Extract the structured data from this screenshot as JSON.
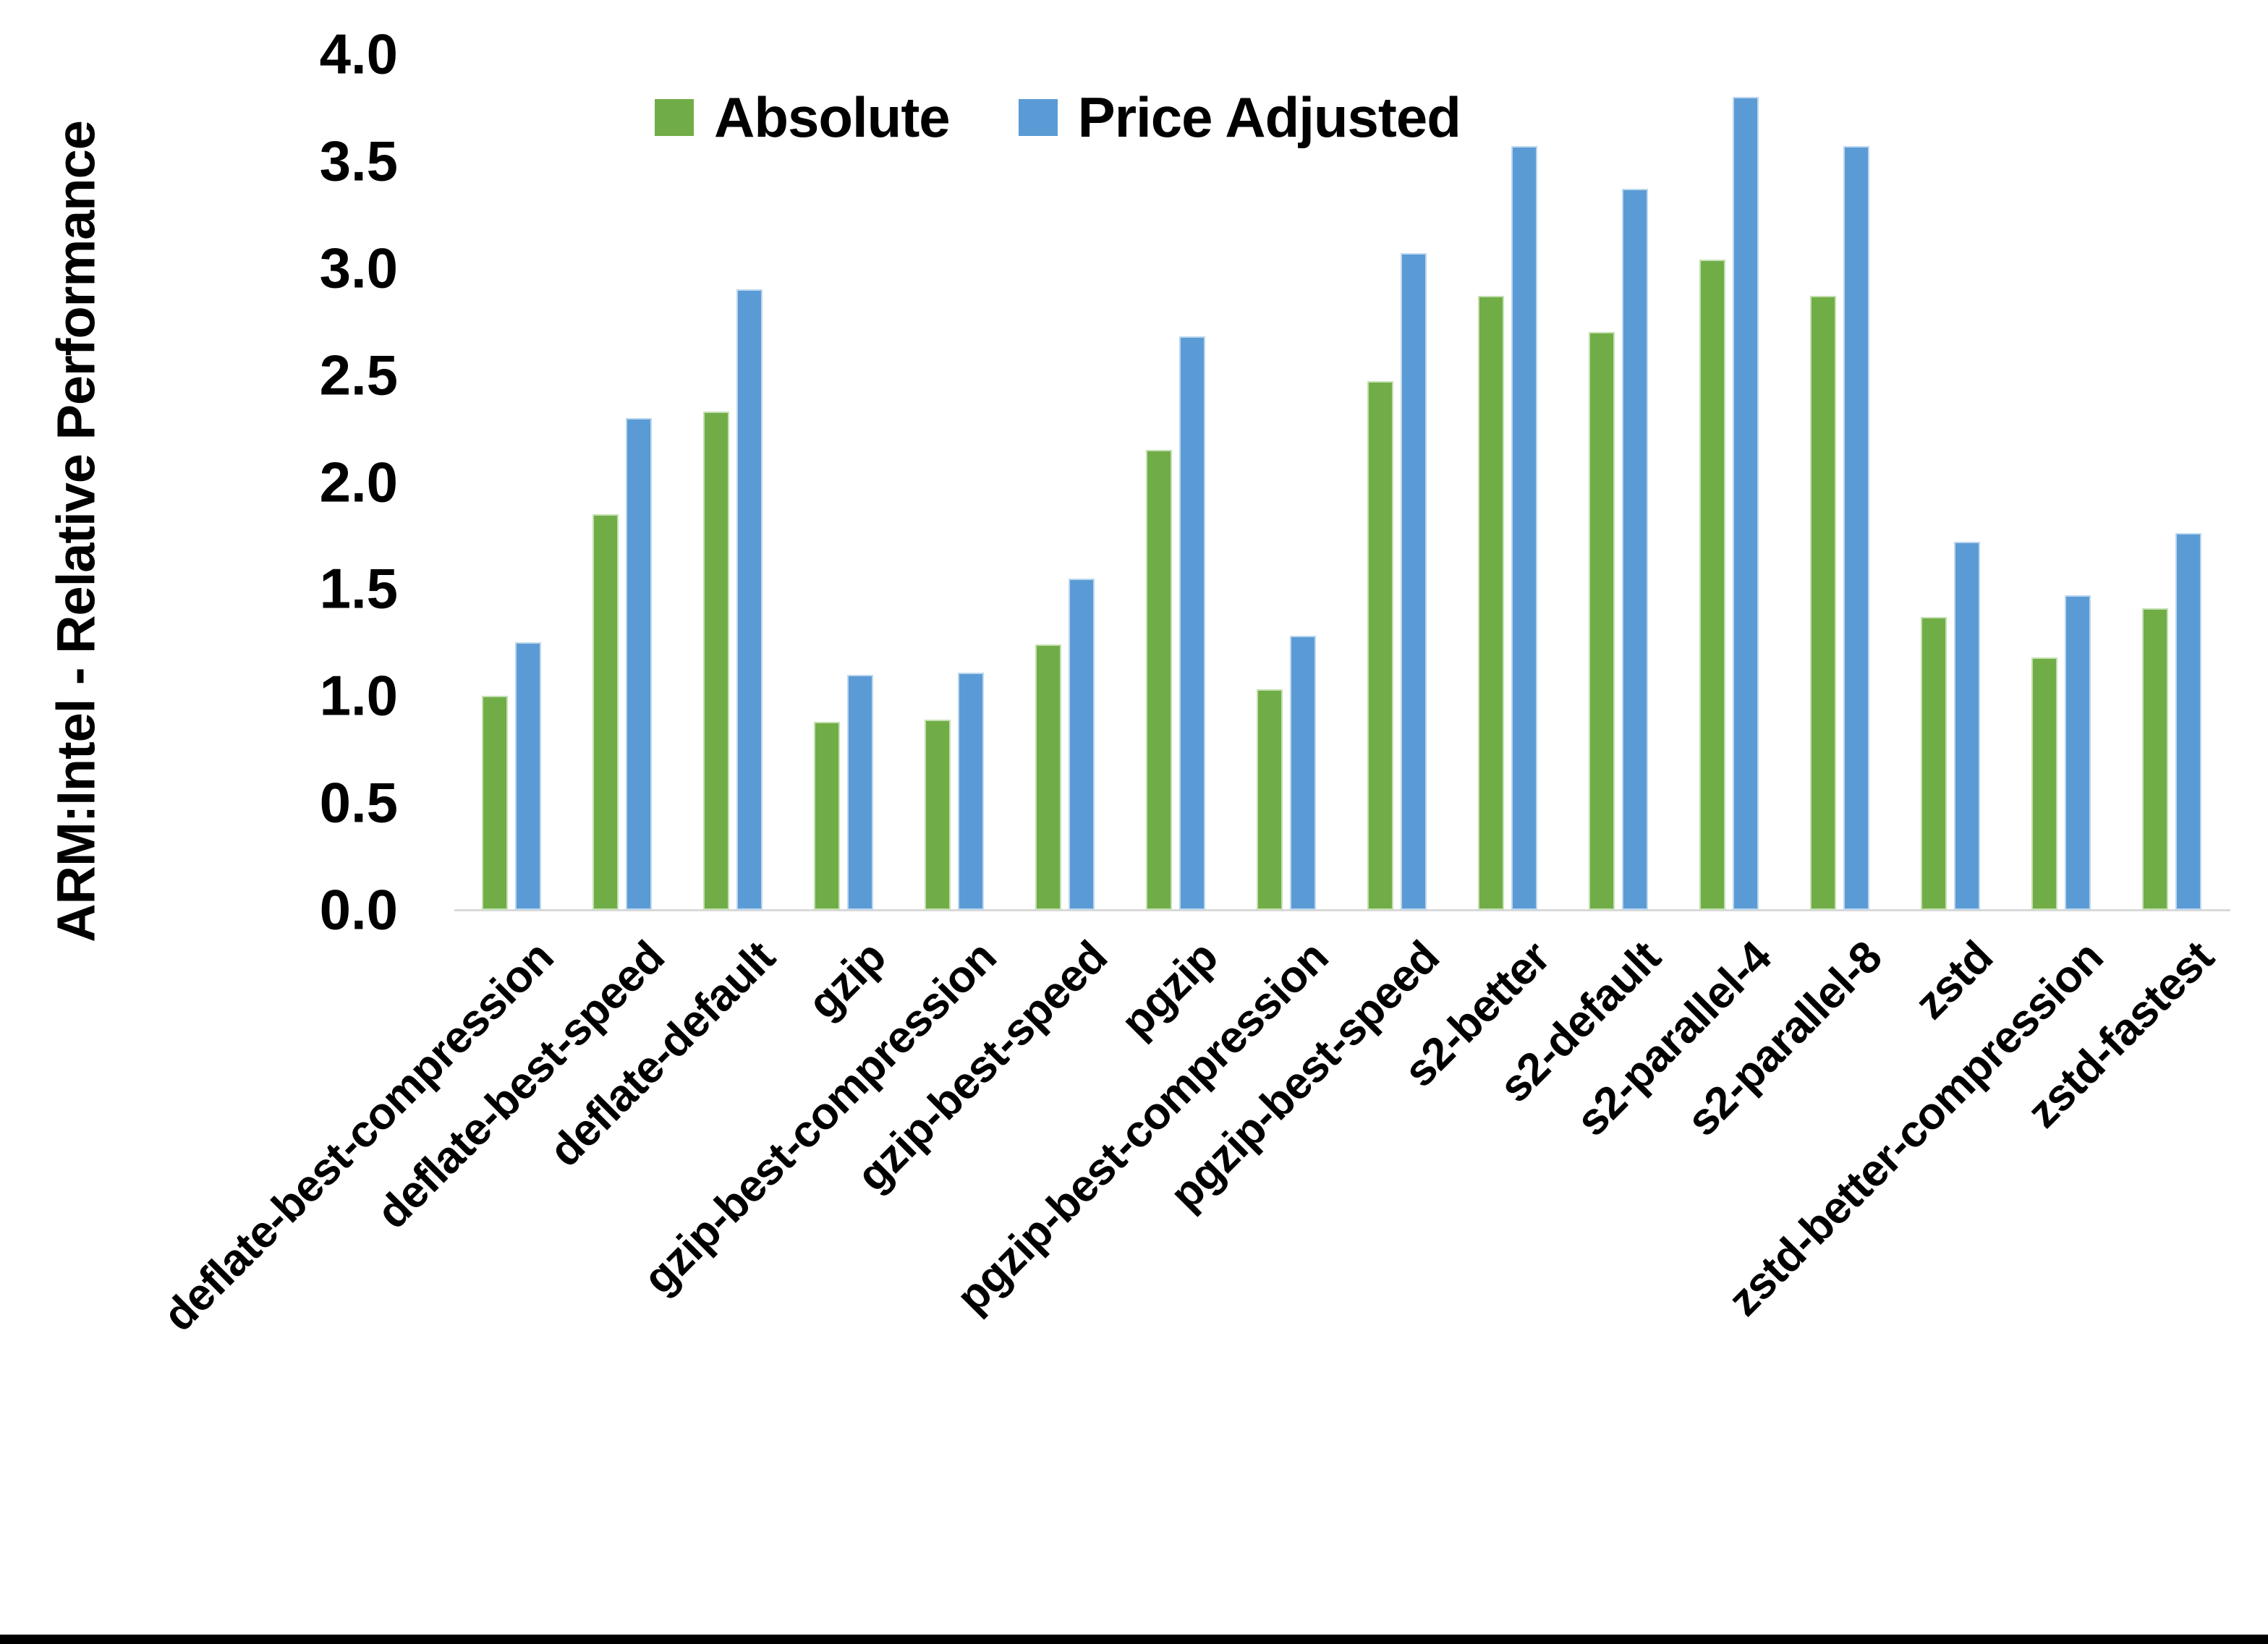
{
  "chart_data": {
    "type": "bar",
    "title": "",
    "ylabel": "ARM:Intel - Relative Performance",
    "xlabel": "",
    "ylim": [
      0.0,
      4.0
    ],
    "ytick_step": 0.5,
    "grid": false,
    "legend_position": "top-center",
    "categories": [
      "deflate-best-compression",
      "deflate-best-speed",
      "deflate-default",
      "gzip",
      "gzip-best-compression",
      "gzip-best-speed",
      "pgzip",
      "pgzip-best-compression",
      "pgzip-best-speed",
      "s2-better",
      "s2-default",
      "s2-parallel-4",
      "s2-parallel-8",
      "zstd",
      "zstd-better-compression",
      "zstd-fastest"
    ],
    "series": [
      {
        "name": "Absolute",
        "color": "#70AD47",
        "edge_color": "#c5e0b3",
        "values": [
          1.0,
          1.85,
          2.33,
          0.88,
          0.89,
          1.24,
          2.15,
          1.03,
          2.47,
          2.87,
          2.7,
          3.04,
          2.87,
          1.37,
          1.18,
          1.41
        ]
      },
      {
        "name": "Price Adjusted",
        "color": "#5B9BD5",
        "edge_color": "#bdd7ee",
        "values": [
          1.25,
          2.3,
          2.9,
          1.1,
          1.11,
          1.55,
          2.68,
          1.28,
          3.07,
          3.57,
          3.37,
          3.8,
          3.57,
          1.72,
          1.47,
          1.76
        ]
      }
    ],
    "axis_line_color": "#d9d9d9",
    "x_label_rotation_deg": 45
  }
}
